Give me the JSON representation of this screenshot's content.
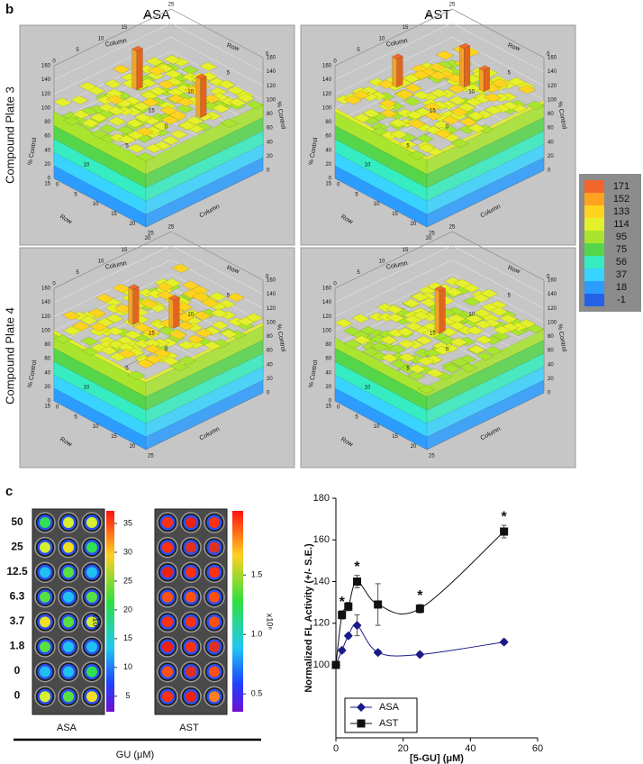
{
  "panel_labels": [
    "b",
    "c"
  ],
  "plots_3d": {
    "column_headers": [
      "ASA",
      "AST"
    ],
    "row_headers": [
      "Compound Plate 3",
      "Compound Plate 4"
    ],
    "axis_labels": {
      "column": "Column",
      "row": "Row",
      "z": "% Control"
    },
    "z_ticks": [
      0,
      20,
      40,
      60,
      80,
      100,
      120,
      140,
      160
    ],
    "column_ticks": [
      0,
      5,
      10,
      15,
      20,
      25
    ],
    "row_ticks": [
      0,
      5,
      10,
      15
    ],
    "color_scale": {
      "values": [
        171,
        152,
        133,
        114,
        95,
        75,
        56,
        37,
        18,
        -1
      ],
      "colors": [
        "#f2642a",
        "#ffa21f",
        "#ffd41f",
        "#e4f02a",
        "#a9e52f",
        "#55d64a",
        "#35edc0",
        "#38d3ff",
        "#2c9cff",
        "#2462ea"
      ]
    }
  },
  "imaging": {
    "concentrations": [
      "50",
      "25",
      "12.5",
      "6.3",
      "3.7",
      "1.8",
      "0",
      "0"
    ],
    "plates": [
      {
        "label": "ASA",
        "colorbar_lim": [
          2.3,
          37.2
        ],
        "colorbar_ticks": [
          35,
          30,
          25,
          20,
          15,
          10,
          5
        ],
        "colorbar_unit": "x10⁶"
      },
      {
        "label": "AST",
        "colorbar_lim": [
          0.35,
          2.04
        ],
        "colorbar_ticks": [
          1.5,
          {
            "value": 1,
            "label": "1.0"
          },
          0.5
        ],
        "colorbar_unit": "x10⁶"
      }
    ],
    "group_label": "GU (μM)"
  },
  "chart_data": {
    "type": "line",
    "x_label": "[5-GU] (μM)",
    "y_label": "Normalized FL Activity (+/- S.E.)",
    "x": [
      0,
      1.8,
      3.7,
      6.3,
      12.5,
      25,
      50
    ],
    "series": [
      {
        "name": "ASA",
        "color": "#1a1a8a",
        "marker": "diamond",
        "values": [
          100,
          107,
          114,
          119,
          106,
          105,
          111
        ],
        "errors": [
          0,
          1,
          1,
          5,
          1,
          1,
          1
        ]
      },
      {
        "name": "AST",
        "color": "#111111",
        "marker": "square",
        "values": [
          100,
          124,
          128,
          140,
          129,
          127,
          164
        ],
        "errors": [
          0,
          2,
          2,
          3,
          10,
          2,
          3
        ]
      }
    ],
    "annotations": [
      {
        "text": "*",
        "x": 1.8
      },
      {
        "text": "*",
        "x": 6.3
      },
      {
        "text": "*",
        "x": 25
      },
      {
        "text": "*",
        "x": 50
      }
    ],
    "xlim": [
      0,
      60
    ],
    "xticks": [
      0,
      20,
      40,
      60
    ],
    "ylim": [
      65,
      180
    ],
    "yticks": [
      100,
      120,
      140,
      160,
      180
    ],
    "legend": "lower-left"
  }
}
